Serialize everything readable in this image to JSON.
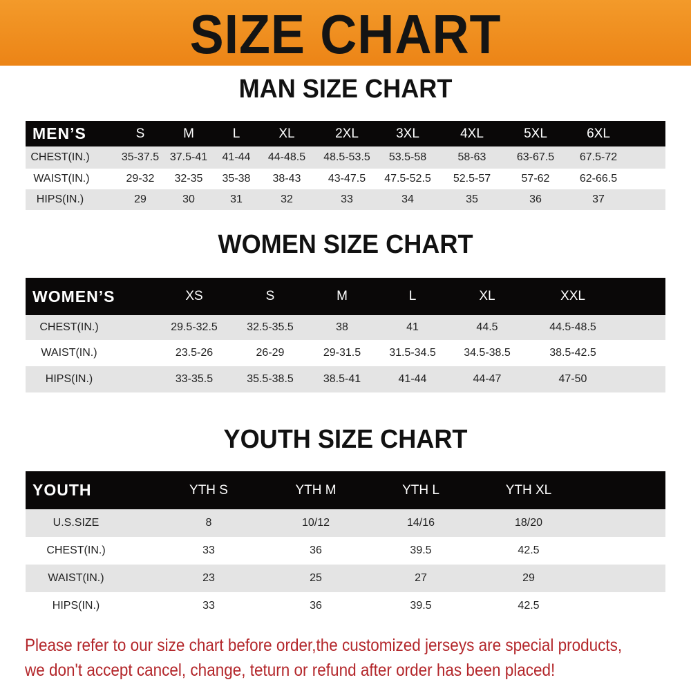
{
  "title": "SIZE CHART",
  "colors": {
    "banner": "#ec8416",
    "header_row": "#0a0808",
    "stripe": "#e4e4e4",
    "notice": "#b3262a"
  },
  "men": {
    "title": "MAN SIZE CHART",
    "header": [
      "MEN’S",
      "S",
      "M",
      "L",
      "XL",
      "2XL",
      "3XL",
      "4XL",
      "5XL",
      "6XL"
    ],
    "rows": [
      [
        "CHEST(IN.)",
        "35-37.5",
        "37.5-41",
        "41-44",
        "44-48.5",
        "48.5-53.5",
        "53.5-58",
        "58-63",
        "63-67.5",
        "67.5-72"
      ],
      [
        "WAIST(IN.)",
        "29-32",
        "32-35",
        "35-38",
        "38-43",
        "43-47.5",
        "47.5-52.5",
        "52.5-57",
        "57-62",
        "62-66.5"
      ],
      [
        "HIPS(IN.)",
        "29",
        "30",
        "31",
        "32",
        "33",
        "34",
        "35",
        "36",
        "37"
      ]
    ]
  },
  "women": {
    "title": "WOMEN SIZE CHART",
    "header": [
      "WOMEN’S",
      "XS",
      "S",
      "M",
      "L",
      "XL",
      "XXL"
    ],
    "rows": [
      [
        "CHEST(IN.)",
        "29.5-32.5",
        "32.5-35.5",
        "38",
        "41",
        "44.5",
        "44.5-48.5"
      ],
      [
        "WAIST(IN.)",
        "23.5-26",
        "26-29",
        "29-31.5",
        "31.5-34.5",
        "34.5-38.5",
        "38.5-42.5"
      ],
      [
        "HIPS(IN.)",
        "33-35.5",
        "35.5-38.5",
        "38.5-41",
        "41-44",
        "44-47",
        "47-50"
      ]
    ]
  },
  "youth": {
    "title": "YOUTH SIZE CHART",
    "header": [
      "YOUTH",
      "YTH S",
      "YTH M",
      "YTH L",
      "YTH XL"
    ],
    "rows": [
      [
        "U.S.SIZE",
        "8",
        "10/12",
        "14/16",
        "18/20"
      ],
      [
        "CHEST(IN.)",
        "33",
        "36",
        "39.5",
        "42.5"
      ],
      [
        "WAIST(IN.)",
        "23",
        "25",
        "27",
        "29"
      ],
      [
        "HIPS(IN.)",
        "33",
        "36",
        "39.5",
        "42.5"
      ]
    ]
  },
  "notice": [
    "Please refer to our size chart before order,the customized jerseys are special products,",
    "we don't accept cancel, change, teturn or refund after order has been placed!"
  ]
}
